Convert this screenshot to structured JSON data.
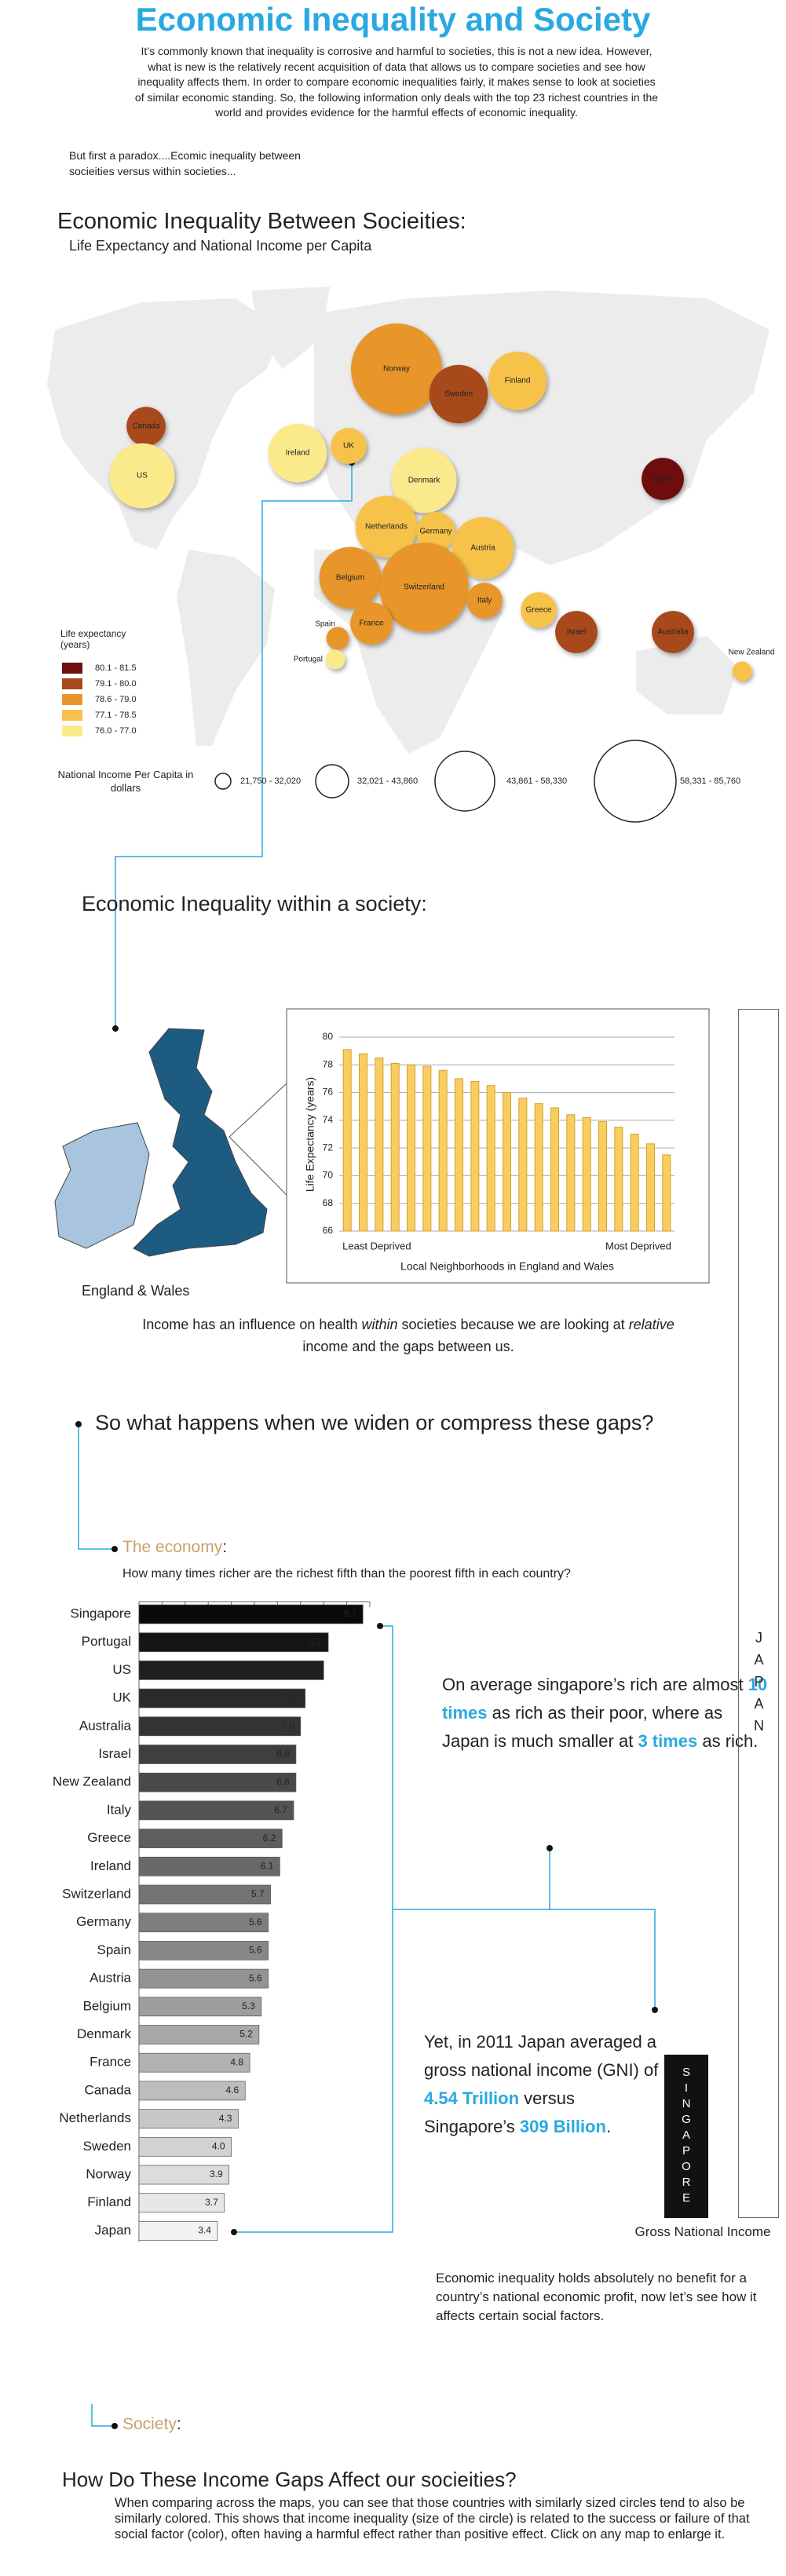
{
  "header": {
    "title": "Economic Inequality and Society",
    "intro": "It’s commonly known that inequality is corrosive and harmful to societies, this is not a new idea. However, what is new is the relatively recent acquisition of data that allows us to compare societies and see how inequality affects them. In order to compare economic inequalities fairly, it makes sense to look at societies of similar economic standing. So, the following information only deals with the top 23 richest countries in the world and provides evidence for the harmful effects of economic inequality."
  },
  "paradox": "But first a paradox....Ecomic inequality between socieities versus within societies...",
  "between": {
    "heading": "Economic Inequality Between Socieities:",
    "subtitle": "Life Expectancy and National Income per Capita"
  },
  "within": {
    "heading": "Economic Inequality within a society:",
    "map_label": "England & Wales",
    "note": [
      "Income has an influence on health ",
      "within",
      " societies because we are looking at ",
      "relative",
      " income and the gaps between us."
    ]
  },
  "gaps_question": "So what happens when we widen or compress these gaps?",
  "economy": {
    "heading": [
      "The economy",
      ":"
    ],
    "question": "How many times richer are the richest fifth than the poorest fifth in each country?",
    "callout_ratio": [
      "On average singapore’s rich are almost ",
      "10 times",
      " as rich as their poor, where as Japan is much smaller at ",
      "3 times",
      " as rich."
    ],
    "callout_gni": [
      "Yet, in 2011 Japan averaged a gross national income (GNI) of ",
      "4.54 Trillion",
      " versus Singapore’s ",
      "309 Billion",
      "."
    ],
    "japan": "JAPAN",
    "singapore": "SINGAPORE",
    "gni_label": "Gross National Income",
    "conclusion": "Economic inequality holds absolutely  no benefit for a country’s national economic profit, now let’s see how it affects certain social factors."
  },
  "society": {
    "heading": [
      "Society",
      ":"
    ],
    "question": "How Do These Income Gaps Affect our socieities?",
    "text": "When comparing across the maps, you can see that those countries with similarly sized circles tend to also be similarly colored. This shows that income inequality (size of the circle) is related to the success or failure of that social factor (color), often having a harmful effect rather than positive effect. Click on any map to enlarge it."
  },
  "chart_data": [
    {
      "type": "bubble",
      "points": [
        {
          "label": "Canada",
          "color": "#a84a1c",
          "size": 36800
        },
        {
          "label": "US",
          "color": "#faea8c",
          "size": 61300
        },
        {
          "label": "Norway",
          "color": "#e8962a",
          "size": 85760
        },
        {
          "label": "Sweden",
          "color": "#a84a1c",
          "size": 55100
        },
        {
          "label": "Finland",
          "color": "#f7c24a",
          "size": 55100
        },
        {
          "label": "Ireland",
          "color": "#faea8c",
          "size": 55100
        },
        {
          "label": "UK",
          "color": "#f7c24a",
          "size": 33700
        },
        {
          "label": "Denmark",
          "color": "#faea8c",
          "size": 61300
        },
        {
          "label": "Netherlands",
          "color": "#f7c24a",
          "size": 58200
        },
        {
          "label": "Germany",
          "color": "#f7c24a",
          "size": 36800
        },
        {
          "label": "Austria",
          "color": "#f7c24a",
          "size": 58200
        },
        {
          "label": "Belgium",
          "color": "#e8962a",
          "size": 58200
        },
        {
          "label": "Switzerland",
          "color": "#e8962a",
          "size": 84000
        },
        {
          "label": "Italy",
          "color": "#e8962a",
          "size": 33700
        },
        {
          "label": "France",
          "color": "#e8962a",
          "size": 39800
        },
        {
          "label": "Spain",
          "color": "#e8962a",
          "size": 21400
        },
        {
          "label": "Portugal",
          "color": "#faea8c",
          "size": 18400
        },
        {
          "label": "Greece",
          "color": "#f7c24a",
          "size": 33700
        },
        {
          "label": "Israel",
          "color": "#a84a1c",
          "size": 39800
        },
        {
          "label": "Japan",
          "color": "#6e1010",
          "size": 39800
        },
        {
          "label": "Australia",
          "color": "#a84a1c",
          "size": 39800
        },
        {
          "label": "New Zealand",
          "color": "#f7c24a",
          "size": 18400
        }
      ],
      "color_legend": {
        "title": "Life expectancy (years)",
        "items": [
          {
            "label": "80.1 - 81.5",
            "color": "#6e1010"
          },
          {
            "label": "79.1 - 80.0",
            "color": "#a84a1c"
          },
          {
            "label": "78.6 - 79.0",
            "color": "#e8962a"
          },
          {
            "label": "77.1 - 78.5",
            "color": "#f7c24a"
          },
          {
            "label": "76.0 - 77.0",
            "color": "#faea8c"
          }
        ]
      },
      "size_legend": {
        "title": "National Income Per Capita in dollars",
        "items": [
          "21,750 - 32,020",
          "32,021 - 43,860",
          "43,861 - 58,330",
          "58,331 - 85,760"
        ]
      }
    },
    {
      "type": "bar",
      "ylabel": "Life Expectancy (years)",
      "xlabel": "Local Neighborhoods in England and Wales",
      "categories": [
        "Least Deprived",
        null,
        null,
        null,
        null,
        null,
        null,
        null,
        null,
        null,
        null,
        null,
        null,
        null,
        null,
        null,
        null,
        null,
        null,
        null,
        "Most Deprived"
      ],
      "values": [
        79.1,
        78.8,
        78.5,
        78.1,
        78.0,
        77.9,
        77.6,
        77.0,
        76.8,
        76.5,
        76.0,
        75.6,
        75.2,
        74.9,
        74.4,
        74.2,
        73.9,
        73.5,
        73.0,
        72.3,
        71.5
      ],
      "color": "#f8cf5e",
      "ylim": [
        66,
        80
      ],
      "yticks": [
        66,
        68,
        70,
        72,
        74,
        76,
        78,
        80
      ],
      "grid": true
    },
    {
      "type": "barh",
      "categories": [
        "Singapore",
        "Portugal",
        "US",
        "UK",
        "Australia",
        "Israel",
        "New Zealand",
        "Italy",
        "Greece",
        "Ireland",
        "Switzerland",
        "Germany",
        "Spain",
        "Austria",
        "Belgium",
        "Denmark",
        "France",
        "Canada",
        "Netherlands",
        "Sweden",
        "Norway",
        "Finland",
        "Japan"
      ],
      "values": [
        9.7,
        8.2,
        8.0,
        7.2,
        7.0,
        6.8,
        6.8,
        6.7,
        6.2,
        6.1,
        5.7,
        5.6,
        5.6,
        5.6,
        5.3,
        5.2,
        4.8,
        4.6,
        4.3,
        4.0,
        3.9,
        3.7,
        3.4
      ],
      "value_labels": [
        "9.7",
        "8.2",
        "8.0",
        "7.2",
        "7.0",
        "6.8",
        "6.8",
        "6.7",
        "6.2",
        "6.1",
        "5.7",
        "5.6",
        "5.6",
        "5.6",
        "5.3",
        "5.2",
        "4.8",
        "4.6",
        "4.3",
        "4.0",
        "3.9",
        "3.7",
        "3.4"
      ],
      "colors": [
        "#0a0a0a",
        "#151515",
        "#1f1f1f",
        "#2a2a2a",
        "#343434",
        "#3f3f3f",
        "#494949",
        "#545454",
        "#5e5e5e",
        "#696969",
        "#737373",
        "#7e7e7e",
        "#888888",
        "#939393",
        "#9d9d9d",
        "#a8a8a8",
        "#b2b2b2",
        "#bdbdbd",
        "#c7c7c7",
        "#d2d2d2",
        "#dcdcdc",
        "#e7e7e7",
        "#f2f2f2"
      ],
      "xlim": [
        0,
        10
      ],
      "xticks": [
        0,
        1,
        2,
        3,
        4,
        5,
        6,
        7,
        8,
        9,
        10
      ]
    }
  ]
}
